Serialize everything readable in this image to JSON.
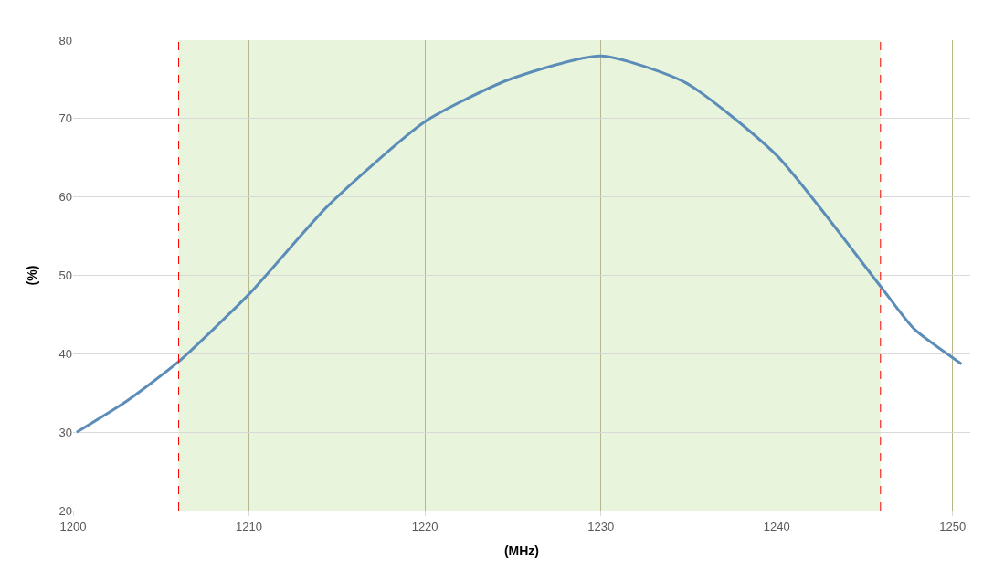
{
  "chart_data": {
    "type": "line",
    "xlabel": "(MHz)",
    "ylabel": "(%)",
    "x": [
      1200.2,
      1203,
      1206,
      1210,
      1214.5,
      1220,
      1224.7,
      1230,
      1234.8,
      1240,
      1245.9,
      1247.8,
      1250.5
    ],
    "series": [
      {
        "color": "#5b8db8",
        "values": [
          30,
          33.9,
          39,
          47.6,
          58.9,
          69.6,
          74.9,
          78,
          74.6,
          65.3,
          48.6,
          43.2,
          38.7
        ]
      }
    ],
    "xlim": [
      1200,
      1251
    ],
    "xticks": [
      1200,
      1210,
      1220,
      1230,
      1240,
      1250
    ],
    "ylim": [
      20,
      80
    ],
    "yticks": [
      20,
      30,
      40,
      50,
      60,
      70,
      80
    ],
    "grid": true,
    "marker": "none",
    "line_style": "solid",
    "bands": [
      {
        "axis": "x",
        "from": 1206,
        "to": 1245.9,
        "color": "#e8f4dc"
      }
    ],
    "ref_lines": [
      {
        "axis": "x",
        "value": 1206,
        "color": "#ff0000",
        "line_style": "dashed"
      },
      {
        "axis": "x",
        "value": 1245.9,
        "color": "#ff0000",
        "line_style": "dashed"
      }
    ]
  }
}
